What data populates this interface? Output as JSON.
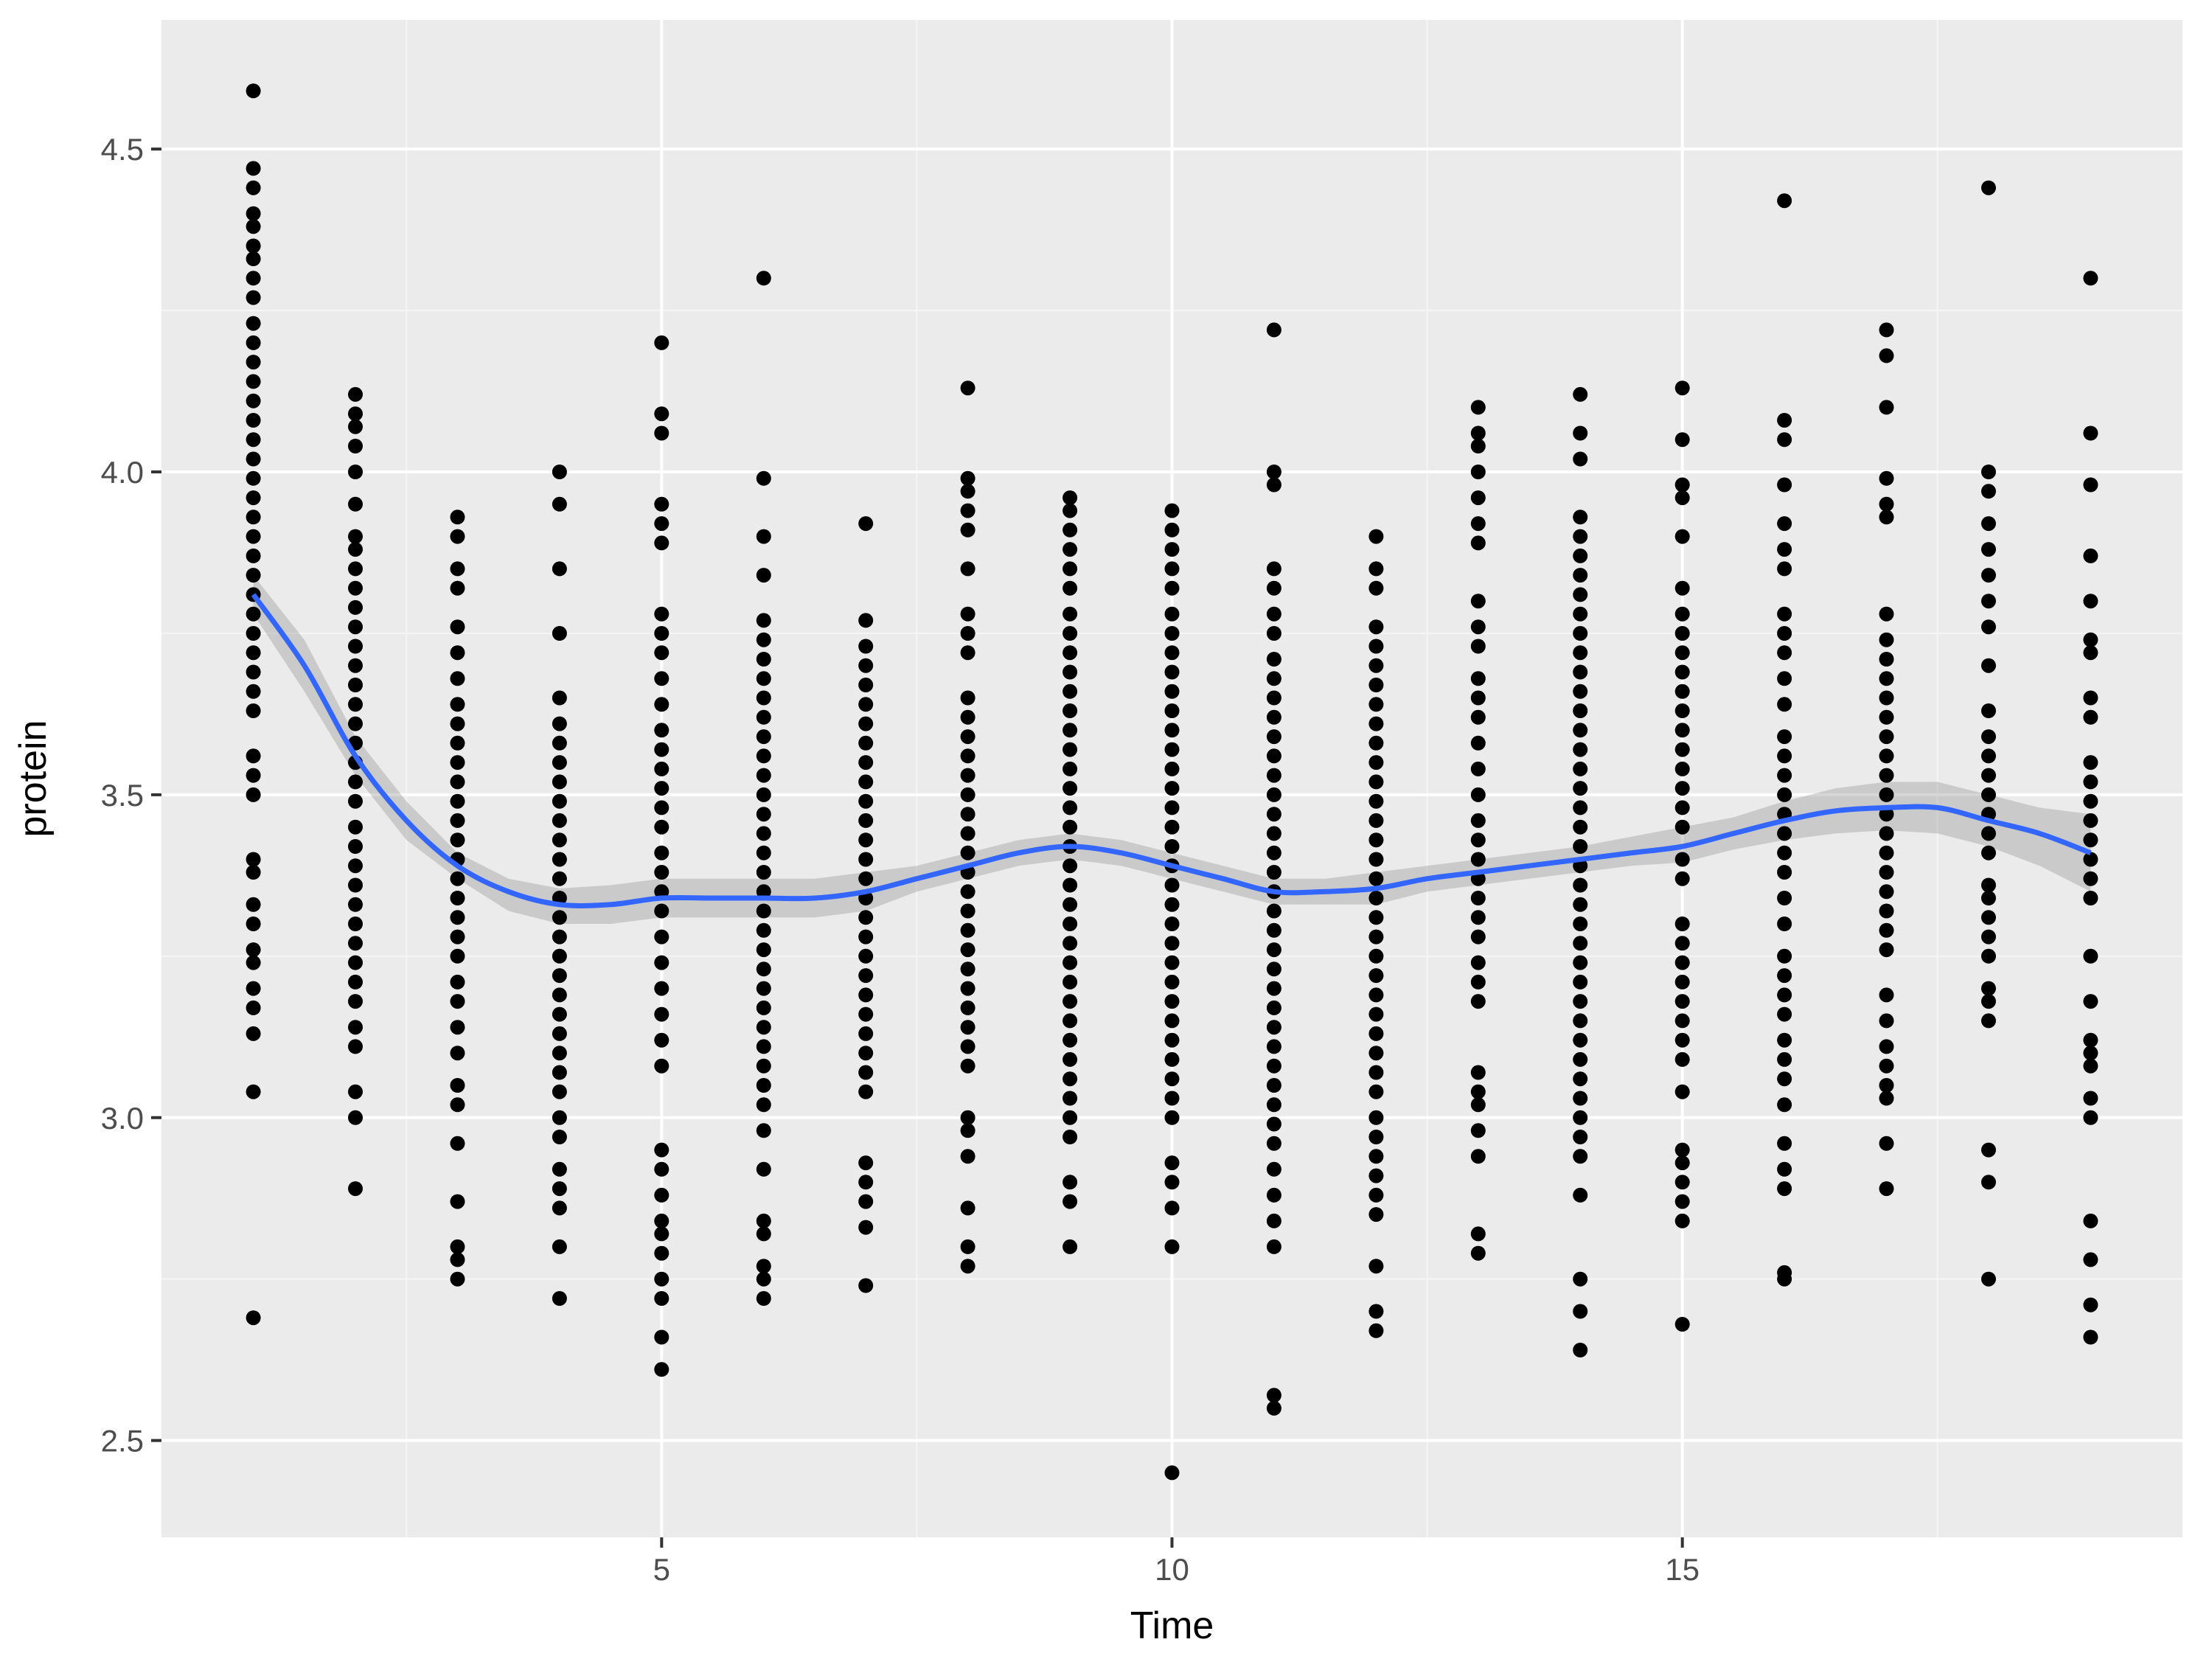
{
  "colors": {
    "panel_background": "#ebebeb",
    "grid_major": "#ffffff",
    "grid_minor": "#f5f5f5",
    "points": "#000000",
    "smooth_line": "#3366ff",
    "confidence_band": "#999999",
    "tick_text": "#4d4d4d"
  },
  "chart_data": {
    "type": "scatter",
    "title": "",
    "xlabel": "Time",
    "ylabel": "protein",
    "xlim": [
      0.1,
      19.9
    ],
    "ylim": [
      2.35,
      4.7
    ],
    "x_ticks": [
      5,
      10,
      15
    ],
    "x_tick_labels": [
      "5",
      "10",
      "15"
    ],
    "y_ticks": [
      2.5,
      3.0,
      3.5,
      4.0,
      4.5
    ],
    "y_tick_labels": [
      "2.5",
      "3.0",
      "3.5",
      "4.0",
      "4.5"
    ],
    "grid": true,
    "legend": "none",
    "series": [
      {
        "kind": "points",
        "points_by_time": [
          {
            "time": 1,
            "protein": [
              4.59,
              4.47,
              4.44,
              4.4,
              4.38,
              4.35,
              4.33,
              4.3,
              4.27,
              4.23,
              4.2,
              4.17,
              4.14,
              4.11,
              4.08,
              4.05,
              4.02,
              3.99,
              3.96,
              3.93,
              3.9,
              3.87,
              3.84,
              3.81,
              3.78,
              3.75,
              3.72,
              3.69,
              3.66,
              3.63,
              3.56,
              3.53,
              3.5,
              3.4,
              3.38,
              3.33,
              3.3,
              3.26,
              3.24,
              3.2,
              3.17,
              3.13,
              3.04,
              2.69
            ]
          },
          {
            "time": 2,
            "protein": [
              4.12,
              4.09,
              4.07,
              4.04,
              4.0,
              3.95,
              3.9,
              3.88,
              3.85,
              3.82,
              3.79,
              3.76,
              3.73,
              3.7,
              3.67,
              3.64,
              3.61,
              3.58,
              3.55,
              3.52,
              3.49,
              3.45,
              3.42,
              3.39,
              3.36,
              3.33,
              3.3,
              3.27,
              3.24,
              3.21,
              3.18,
              3.14,
              3.11,
              3.04,
              3.0,
              2.89
            ]
          },
          {
            "time": 3,
            "protein": [
              3.93,
              3.9,
              3.85,
              3.82,
              3.76,
              3.72,
              3.68,
              3.64,
              3.61,
              3.58,
              3.55,
              3.52,
              3.49,
              3.46,
              3.43,
              3.4,
              3.37,
              3.34,
              3.31,
              3.28,
              3.25,
              3.21,
              3.18,
              3.14,
              3.1,
              3.05,
              3.02,
              2.96,
              2.87,
              2.8,
              2.78,
              2.75
            ]
          },
          {
            "time": 4,
            "protein": [
              4.0,
              3.95,
              3.85,
              3.75,
              3.65,
              3.61,
              3.58,
              3.55,
              3.52,
              3.49,
              3.46,
              3.43,
              3.4,
              3.37,
              3.34,
              3.31,
              3.28,
              3.25,
              3.22,
              3.19,
              3.16,
              3.13,
              3.1,
              3.07,
              3.04,
              3.0,
              2.97,
              2.92,
              2.89,
              2.86,
              2.8,
              2.72
            ]
          },
          {
            "time": 5,
            "protein": [
              4.2,
              4.09,
              4.06,
              3.95,
              3.92,
              3.89,
              3.78,
              3.75,
              3.72,
              3.68,
              3.64,
              3.6,
              3.57,
              3.54,
              3.51,
              3.48,
              3.45,
              3.41,
              3.38,
              3.35,
              3.32,
              3.28,
              3.24,
              3.2,
              3.16,
              3.12,
              3.08,
              2.95,
              2.92,
              2.88,
              2.84,
              2.82,
              2.79,
              2.75,
              2.72,
              2.66,
              2.61
            ]
          },
          {
            "time": 6,
            "protein": [
              4.3,
              3.99,
              3.9,
              3.84,
              3.77,
              3.74,
              3.71,
              3.68,
              3.65,
              3.62,
              3.59,
              3.56,
              3.53,
              3.5,
              3.47,
              3.44,
              3.41,
              3.38,
              3.35,
              3.32,
              3.29,
              3.26,
              3.23,
              3.2,
              3.17,
              3.14,
              3.11,
              3.08,
              3.05,
              3.02,
              2.98,
              2.92,
              2.84,
              2.82,
              2.77,
              2.75,
              2.72
            ]
          },
          {
            "time": 7,
            "protein": [
              3.92,
              3.77,
              3.73,
              3.7,
              3.67,
              3.64,
              3.61,
              3.58,
              3.55,
              3.52,
              3.49,
              3.46,
              3.43,
              3.4,
              3.37,
              3.34,
              3.31,
              3.28,
              3.25,
              3.22,
              3.19,
              3.16,
              3.13,
              3.1,
              3.07,
              3.04,
              2.93,
              2.9,
              2.87,
              2.83,
              2.74
            ]
          },
          {
            "time": 8,
            "protein": [
              4.13,
              3.99,
              3.97,
              3.94,
              3.91,
              3.85,
              3.78,
              3.75,
              3.72,
              3.65,
              3.62,
              3.59,
              3.56,
              3.53,
              3.5,
              3.47,
              3.44,
              3.41,
              3.38,
              3.35,
              3.32,
              3.29,
              3.26,
              3.23,
              3.2,
              3.17,
              3.14,
              3.11,
              3.08,
              3.0,
              2.98,
              2.94,
              2.86,
              2.8,
              2.77
            ]
          },
          {
            "time": 9,
            "protein": [
              3.96,
              3.94,
              3.91,
              3.88,
              3.85,
              3.82,
              3.78,
              3.75,
              3.72,
              3.69,
              3.66,
              3.63,
              3.6,
              3.57,
              3.54,
              3.51,
              3.48,
              3.45,
              3.42,
              3.39,
              3.36,
              3.33,
              3.3,
              3.27,
              3.24,
              3.21,
              3.18,
              3.15,
              3.12,
              3.09,
              3.06,
              3.03,
              3.0,
              2.97,
              2.9,
              2.87,
              2.8
            ]
          },
          {
            "time": 10,
            "protein": [
              3.94,
              3.91,
              3.88,
              3.85,
              3.82,
              3.78,
              3.75,
              3.72,
              3.69,
              3.66,
              3.63,
              3.6,
              3.57,
              3.54,
              3.51,
              3.48,
              3.45,
              3.42,
              3.39,
              3.36,
              3.33,
              3.3,
              3.27,
              3.24,
              3.21,
              3.18,
              3.15,
              3.12,
              3.09,
              3.06,
              3.03,
              3.0,
              2.93,
              2.9,
              2.86,
              2.8,
              2.45
            ]
          },
          {
            "time": 11,
            "protein": [
              4.22,
              4.0,
              3.98,
              3.85,
              3.82,
              3.78,
              3.75,
              3.71,
              3.68,
              3.65,
              3.62,
              3.59,
              3.56,
              3.53,
              3.5,
              3.47,
              3.44,
              3.41,
              3.38,
              3.35,
              3.32,
              3.29,
              3.26,
              3.23,
              3.2,
              3.17,
              3.14,
              3.11,
              3.08,
              3.05,
              3.02,
              2.99,
              2.96,
              2.92,
              2.88,
              2.84,
              2.8,
              2.57,
              2.55
            ]
          },
          {
            "time": 12,
            "protein": [
              3.9,
              3.85,
              3.82,
              3.76,
              3.73,
              3.7,
              3.67,
              3.64,
              3.61,
              3.58,
              3.55,
              3.52,
              3.49,
              3.46,
              3.43,
              3.4,
              3.37,
              3.34,
              3.31,
              3.28,
              3.25,
              3.22,
              3.19,
              3.16,
              3.13,
              3.1,
              3.07,
              3.04,
              3.0,
              2.97,
              2.94,
              2.91,
              2.88,
              2.85,
              2.77,
              2.7,
              2.67
            ]
          },
          {
            "time": 13,
            "protein": [
              4.1,
              4.06,
              4.04,
              4.0,
              3.96,
              3.92,
              3.89,
              3.8,
              3.76,
              3.73,
              3.68,
              3.65,
              3.62,
              3.58,
              3.54,
              3.5,
              3.46,
              3.43,
              3.4,
              3.37,
              3.34,
              3.31,
              3.28,
              3.24,
              3.21,
              3.18,
              3.07,
              3.04,
              3.02,
              2.98,
              2.94,
              2.82,
              2.79
            ]
          },
          {
            "time": 14,
            "protein": [
              4.12,
              4.06,
              4.02,
              3.93,
              3.9,
              3.87,
              3.84,
              3.81,
              3.78,
              3.75,
              3.72,
              3.69,
              3.66,
              3.63,
              3.6,
              3.57,
              3.54,
              3.51,
              3.48,
              3.45,
              3.42,
              3.39,
              3.36,
              3.33,
              3.3,
              3.27,
              3.24,
              3.21,
              3.18,
              3.15,
              3.12,
              3.09,
              3.06,
              3.03,
              3.0,
              2.97,
              2.94,
              2.88,
              2.75,
              2.7,
              2.64
            ]
          },
          {
            "time": 15,
            "protein": [
              4.13,
              4.05,
              3.98,
              3.96,
              3.9,
              3.82,
              3.78,
              3.75,
              3.72,
              3.69,
              3.66,
              3.63,
              3.6,
              3.57,
              3.54,
              3.51,
              3.48,
              3.45,
              3.4,
              3.37,
              3.3,
              3.27,
              3.24,
              3.21,
              3.18,
              3.15,
              3.12,
              3.09,
              3.04,
              2.95,
              2.93,
              2.9,
              2.87,
              2.84,
              2.68
            ]
          },
          {
            "time": 16,
            "protein": [
              4.42,
              4.08,
              4.05,
              3.98,
              3.92,
              3.88,
              3.85,
              3.78,
              3.75,
              3.72,
              3.68,
              3.64,
              3.59,
              3.56,
              3.53,
              3.5,
              3.47,
              3.44,
              3.41,
              3.38,
              3.34,
              3.3,
              3.25,
              3.22,
              3.19,
              3.16,
              3.12,
              3.09,
              3.06,
              3.02,
              2.96,
              2.92,
              2.89,
              2.76,
              2.75
            ]
          },
          {
            "time": 17,
            "protein": [
              4.22,
              4.18,
              4.1,
              3.99,
              3.95,
              3.93,
              3.78,
              3.74,
              3.71,
              3.68,
              3.65,
              3.62,
              3.59,
              3.56,
              3.53,
              3.5,
              3.47,
              3.44,
              3.41,
              3.38,
              3.35,
              3.32,
              3.29,
              3.26,
              3.19,
              3.15,
              3.11,
              3.08,
              3.05,
              3.03,
              2.96,
              2.89
            ]
          },
          {
            "time": 18,
            "protein": [
              4.44,
              4.0,
              3.97,
              3.92,
              3.88,
              3.84,
              3.8,
              3.76,
              3.7,
              3.63,
              3.59,
              3.56,
              3.53,
              3.5,
              3.47,
              3.44,
              3.41,
              3.36,
              3.34,
              3.31,
              3.28,
              3.25,
              3.2,
              3.18,
              3.15,
              2.95,
              2.9,
              2.75
            ]
          },
          {
            "time": 19,
            "protein": [
              4.3,
              4.06,
              3.98,
              3.87,
              3.8,
              3.74,
              3.72,
              3.65,
              3.62,
              3.55,
              3.52,
              3.49,
              3.46,
              3.43,
              3.4,
              3.37,
              3.34,
              3.25,
              3.18,
              3.12,
              3.1,
              3.08,
              3.03,
              3.0,
              2.84,
              2.78,
              2.71,
              2.66
            ]
          }
        ]
      },
      {
        "kind": "smooth",
        "x": [
          1,
          1.5,
          2,
          2.5,
          3,
          3.5,
          4,
          4.5,
          5,
          5.5,
          6,
          6.5,
          7,
          7.5,
          8,
          8.5,
          9,
          9.5,
          10,
          10.5,
          11,
          11.5,
          12,
          12.5,
          13,
          13.5,
          14,
          14.5,
          15,
          15.5,
          16,
          16.5,
          17,
          17.5,
          18,
          18.5,
          19
        ],
        "y": [
          3.81,
          3.7,
          3.56,
          3.46,
          3.39,
          3.35,
          3.33,
          3.33,
          3.34,
          3.34,
          3.34,
          3.34,
          3.35,
          3.37,
          3.39,
          3.41,
          3.42,
          3.41,
          3.39,
          3.37,
          3.35,
          3.35,
          3.355,
          3.37,
          3.38,
          3.39,
          3.4,
          3.41,
          3.42,
          3.44,
          3.46,
          3.475,
          3.48,
          3.48,
          3.46,
          3.44,
          3.41
        ],
        "lower": [
          3.78,
          3.66,
          3.53,
          3.43,
          3.37,
          3.32,
          3.3,
          3.3,
          3.31,
          3.31,
          3.31,
          3.31,
          3.32,
          3.35,
          3.37,
          3.39,
          3.4,
          3.39,
          3.37,
          3.35,
          3.33,
          3.33,
          3.33,
          3.35,
          3.36,
          3.37,
          3.38,
          3.39,
          3.395,
          3.415,
          3.43,
          3.44,
          3.445,
          3.44,
          3.42,
          3.39,
          3.35
        ],
        "upper": [
          3.84,
          3.74,
          3.59,
          3.49,
          3.41,
          3.37,
          3.355,
          3.36,
          3.37,
          3.37,
          3.37,
          3.37,
          3.38,
          3.39,
          3.41,
          3.43,
          3.44,
          3.43,
          3.41,
          3.39,
          3.37,
          3.37,
          3.38,
          3.39,
          3.4,
          3.41,
          3.42,
          3.435,
          3.45,
          3.465,
          3.49,
          3.51,
          3.52,
          3.52,
          3.5,
          3.48,
          3.47
        ]
      }
    ]
  }
}
